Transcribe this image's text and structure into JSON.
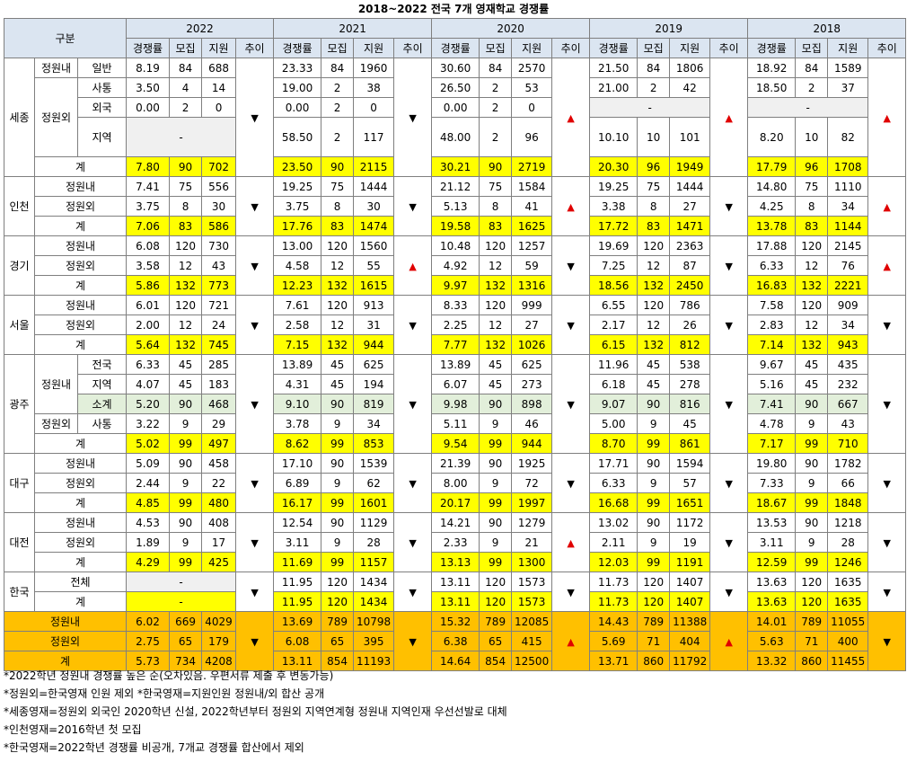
{
  "title": "2018~2022 전국 7개 영재학교 경쟁률",
  "header": {
    "category": "구분",
    "years": [
      "2022",
      "2021",
      "2020",
      "2019",
      "2018"
    ],
    "cols": [
      "경쟁률",
      "모집",
      "지원",
      "추이"
    ]
  },
  "symbols": {
    "up": "▲",
    "down": "▼",
    "dash": "-"
  },
  "labels": {
    "sejong": "세종",
    "incheon": "인천",
    "gyeonggi": "경기",
    "seoul": "서울",
    "gwangju": "광주",
    "daegu": "대구",
    "daejeon": "대전",
    "hanguk": "한국",
    "in": "정원내",
    "out": "정원외",
    "total": "계",
    "ilban": "일반",
    "satong": "사통",
    "oeguk": "외국",
    "jiyeok": "지역",
    "jeonguk": "전국",
    "sogye": "소계",
    "jeonche": "전체"
  },
  "rows": {
    "sj_ilban": [
      [
        "8.19",
        "84",
        "688"
      ],
      [
        "23.33",
        "84",
        "1960"
      ],
      [
        "30.60",
        "84",
        "2570"
      ],
      [
        "21.50",
        "84",
        "1806"
      ],
      [
        "18.92",
        "84",
        "1589"
      ]
    ],
    "sj_satong": [
      [
        "3.50",
        "4",
        "14"
      ],
      [
        "19.00",
        "2",
        "38"
      ],
      [
        "26.50",
        "2",
        "53"
      ],
      [
        "21.00",
        "2",
        "42"
      ],
      [
        "18.50",
        "2",
        "37"
      ]
    ],
    "sj_oeguk": [
      [
        "0.00",
        "2",
        "0"
      ],
      [
        "0.00",
        "2",
        "0"
      ],
      [
        "0.00",
        "2",
        "0"
      ]
    ],
    "sj_jiyeok": [
      [
        "58.50",
        "2",
        "117"
      ],
      [
        "48.00",
        "2",
        "96"
      ],
      [
        "10.10",
        "10",
        "101"
      ],
      [
        "8.20",
        "10",
        "82"
      ]
    ],
    "sj_total": [
      [
        "7.80",
        "90",
        "702"
      ],
      [
        "23.50",
        "90",
        "2115"
      ],
      [
        "30.21",
        "90",
        "2719"
      ],
      [
        "20.30",
        "96",
        "1949"
      ],
      [
        "17.79",
        "96",
        "1708"
      ]
    ],
    "ic_in": [
      [
        "7.41",
        "75",
        "556"
      ],
      [
        "19.25",
        "75",
        "1444"
      ],
      [
        "21.12",
        "75",
        "1584"
      ],
      [
        "19.25",
        "75",
        "1444"
      ],
      [
        "14.80",
        "75",
        "1110"
      ]
    ],
    "ic_out": [
      [
        "3.75",
        "8",
        "30"
      ],
      [
        "3.75",
        "8",
        "30"
      ],
      [
        "5.13",
        "8",
        "41"
      ],
      [
        "3.38",
        "8",
        "27"
      ],
      [
        "4.25",
        "8",
        "34"
      ]
    ],
    "ic_total": [
      [
        "7.06",
        "83",
        "586"
      ],
      [
        "17.76",
        "83",
        "1474"
      ],
      [
        "19.58",
        "83",
        "1625"
      ],
      [
        "17.72",
        "83",
        "1471"
      ],
      [
        "13.78",
        "83",
        "1144"
      ]
    ],
    "gg_in": [
      [
        "6.08",
        "120",
        "730"
      ],
      [
        "13.00",
        "120",
        "1560"
      ],
      [
        "10.48",
        "120",
        "1257"
      ],
      [
        "19.69",
        "120",
        "2363"
      ],
      [
        "17.88",
        "120",
        "2145"
      ]
    ],
    "gg_out": [
      [
        "3.58",
        "12",
        "43"
      ],
      [
        "4.58",
        "12",
        "55"
      ],
      [
        "4.92",
        "12",
        "59"
      ],
      [
        "7.25",
        "12",
        "87"
      ],
      [
        "6.33",
        "12",
        "76"
      ]
    ],
    "gg_total": [
      [
        "5.86",
        "132",
        "773"
      ],
      [
        "12.23",
        "132",
        "1615"
      ],
      [
        "9.97",
        "132",
        "1316"
      ],
      [
        "18.56",
        "132",
        "2450"
      ],
      [
        "16.83",
        "132",
        "2221"
      ]
    ],
    "se_in": [
      [
        "6.01",
        "120",
        "721"
      ],
      [
        "7.61",
        "120",
        "913"
      ],
      [
        "8.33",
        "120",
        "999"
      ],
      [
        "6.55",
        "120",
        "786"
      ],
      [
        "7.58",
        "120",
        "909"
      ]
    ],
    "se_out": [
      [
        "2.00",
        "12",
        "24"
      ],
      [
        "2.58",
        "12",
        "31"
      ],
      [
        "2.25",
        "12",
        "27"
      ],
      [
        "2.17",
        "12",
        "26"
      ],
      [
        "2.83",
        "12",
        "34"
      ]
    ],
    "se_total": [
      [
        "5.64",
        "132",
        "745"
      ],
      [
        "7.15",
        "132",
        "944"
      ],
      [
        "7.77",
        "132",
        "1026"
      ],
      [
        "6.15",
        "132",
        "812"
      ],
      [
        "7.14",
        "132",
        "943"
      ]
    ],
    "gj_jeonguk": [
      [
        "6.33",
        "45",
        "285"
      ],
      [
        "13.89",
        "45",
        "625"
      ],
      [
        "13.89",
        "45",
        "625"
      ],
      [
        "11.96",
        "45",
        "538"
      ],
      [
        "9.67",
        "45",
        "435"
      ]
    ],
    "gj_jiyeok": [
      [
        "4.07",
        "45",
        "183"
      ],
      [
        "4.31",
        "45",
        "194"
      ],
      [
        "6.07",
        "45",
        "273"
      ],
      [
        "6.18",
        "45",
        "278"
      ],
      [
        "5.16",
        "45",
        "232"
      ]
    ],
    "gj_sogye": [
      [
        "5.20",
        "90",
        "468"
      ],
      [
        "9.10",
        "90",
        "819"
      ],
      [
        "9.98",
        "90",
        "898"
      ],
      [
        "9.07",
        "90",
        "816"
      ],
      [
        "7.41",
        "90",
        "667"
      ]
    ],
    "gj_satong": [
      [
        "3.22",
        "9",
        "29"
      ],
      [
        "3.78",
        "9",
        "34"
      ],
      [
        "5.11",
        "9",
        "46"
      ],
      [
        "5.00",
        "9",
        "45"
      ],
      [
        "4.78",
        "9",
        "43"
      ]
    ],
    "gj_total": [
      [
        "5.02",
        "99",
        "497"
      ],
      [
        "8.62",
        "99",
        "853"
      ],
      [
        "9.54",
        "99",
        "944"
      ],
      [
        "8.70",
        "99",
        "861"
      ],
      [
        "7.17",
        "99",
        "710"
      ]
    ],
    "dg_in": [
      [
        "5.09",
        "90",
        "458"
      ],
      [
        "17.10",
        "90",
        "1539"
      ],
      [
        "21.39",
        "90",
        "1925"
      ],
      [
        "17.71",
        "90",
        "1594"
      ],
      [
        "19.80",
        "90",
        "1782"
      ]
    ],
    "dg_out": [
      [
        "2.44",
        "9",
        "22"
      ],
      [
        "6.89",
        "9",
        "62"
      ],
      [
        "8.00",
        "9",
        "72"
      ],
      [
        "6.33",
        "9",
        "57"
      ],
      [
        "7.33",
        "9",
        "66"
      ]
    ],
    "dg_total": [
      [
        "4.85",
        "99",
        "480"
      ],
      [
        "16.17",
        "99",
        "1601"
      ],
      [
        "20.17",
        "99",
        "1997"
      ],
      [
        "16.68",
        "99",
        "1651"
      ],
      [
        "18.67",
        "99",
        "1848"
      ]
    ],
    "dj_in": [
      [
        "4.53",
        "90",
        "408"
      ],
      [
        "12.54",
        "90",
        "1129"
      ],
      [
        "14.21",
        "90",
        "1279"
      ],
      [
        "13.02",
        "90",
        "1172"
      ],
      [
        "13.53",
        "90",
        "1218"
      ]
    ],
    "dj_out": [
      [
        "1.89",
        "9",
        "17"
      ],
      [
        "3.11",
        "9",
        "28"
      ],
      [
        "2.33",
        "9",
        "21"
      ],
      [
        "2.11",
        "9",
        "19"
      ],
      [
        "3.11",
        "9",
        "28"
      ]
    ],
    "dj_total": [
      [
        "4.29",
        "99",
        "425"
      ],
      [
        "11.69",
        "99",
        "1157"
      ],
      [
        "13.13",
        "99",
        "1300"
      ],
      [
        "12.03",
        "99",
        "1191"
      ],
      [
        "12.59",
        "99",
        "1246"
      ]
    ],
    "hg_all": [
      [
        "11.95",
        "120",
        "1434"
      ],
      [
        "13.11",
        "120",
        "1573"
      ],
      [
        "11.73",
        "120",
        "1407"
      ],
      [
        "13.63",
        "120",
        "1635"
      ]
    ],
    "hg_total": [
      [
        "11.95",
        "120",
        "1434"
      ],
      [
        "13.11",
        "120",
        "1573"
      ],
      [
        "11.73",
        "120",
        "1407"
      ],
      [
        "13.63",
        "120",
        "1635"
      ]
    ],
    "sum_in": [
      [
        "6.02",
        "669",
        "4029"
      ],
      [
        "13.69",
        "789",
        "10798"
      ],
      [
        "15.32",
        "789",
        "12085"
      ],
      [
        "14.43",
        "789",
        "11388"
      ],
      [
        "14.01",
        "789",
        "11055"
      ]
    ],
    "sum_out": [
      [
        "2.75",
        "65",
        "179"
      ],
      [
        "6.08",
        "65",
        "395"
      ],
      [
        "6.38",
        "65",
        "415"
      ],
      [
        "5.69",
        "71",
        "404"
      ],
      [
        "5.63",
        "71",
        "400"
      ]
    ],
    "sum_total": [
      [
        "5.73",
        "734",
        "4208"
      ],
      [
        "13.11",
        "854",
        "11193"
      ],
      [
        "14.64",
        "854",
        "12500"
      ],
      [
        "13.71",
        "860",
        "11792"
      ],
      [
        "13.32",
        "860",
        "11455"
      ]
    ]
  },
  "trends": {
    "sejong": [
      "down",
      "down",
      "up",
      "up",
      "up"
    ],
    "incheon": [
      "down",
      "down",
      "up",
      "down",
      "up"
    ],
    "gyeonggi": [
      "down",
      "up",
      "down",
      "down",
      "up"
    ],
    "seoul": [
      "down",
      "down",
      "down",
      "down",
      "down"
    ],
    "gwangju": [
      "down",
      "down",
      "down",
      "down",
      "down"
    ],
    "daegu": [
      "down",
      "down",
      "down",
      "down",
      "down"
    ],
    "daejeon": [
      "down",
      "down",
      "up",
      "down",
      "down"
    ],
    "hanguk": [
      "down",
      "down",
      "down",
      "down",
      "down"
    ],
    "sum": [
      "down",
      "down",
      "up",
      "up",
      "down"
    ]
  },
  "notes": [
    "*2022학년 정원내 경쟁률 높은 순(오차있음. 우편서류 제출 후 변동가능)",
    "*정원외=한국영재 인원 제외 *한국영재=지원인원 정원내/외 합산 공개",
    "*세종영재=정원외 외국인 2020학년 신설, 2022학년부터 정원외 지역연계형 정원내 지역인재 우선선발로 대체",
    "*인천영재=2016학년 첫 모집",
    "*한국영재=2022학년 경쟁률 비공개, 7개교 경쟁률 합산에서 제외"
  ]
}
